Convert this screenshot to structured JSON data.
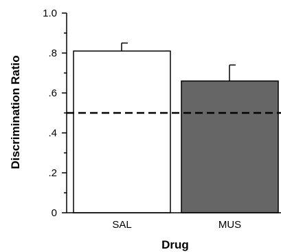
{
  "chart_data": {
    "type": "bar",
    "xlabel": "Drug",
    "ylabel": "Discrimination Ratio",
    "ylim": [
      0,
      1.0
    ],
    "y_ticks": [
      {
        "value": 0,
        "label": "0"
      },
      {
        "value": 0.2,
        "label": ".2"
      },
      {
        "value": 0.4,
        "label": ".4"
      },
      {
        "value": 0.6,
        "label": ".6"
      },
      {
        "value": 0.8,
        "label": ".8"
      },
      {
        "value": 1.0,
        "label": "1.0"
      }
    ],
    "y_minor_step": 0.1,
    "categories": [
      "SAL",
      "MUS"
    ],
    "values": [
      0.81,
      0.66
    ],
    "error_upper": [
      0.85,
      0.74
    ],
    "bar_colors": [
      "#ffffff",
      "#666666"
    ],
    "reference_line": {
      "value": 0.5,
      "style": "dashed"
    },
    "grid": false,
    "legend": "none"
  }
}
